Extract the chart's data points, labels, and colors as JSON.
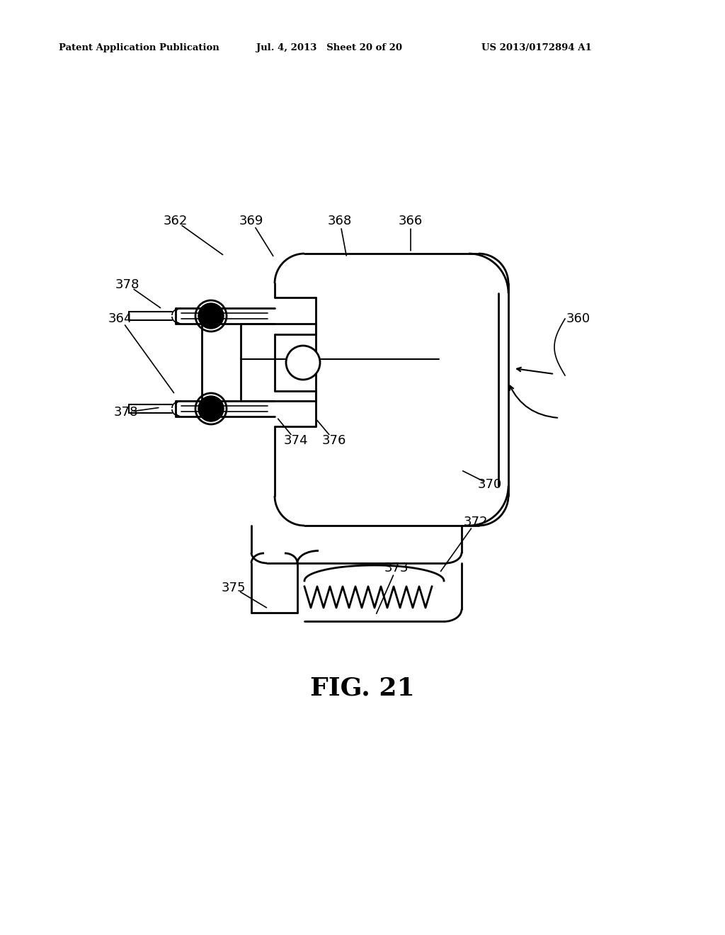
{
  "bg_color": "#ffffff",
  "line_color": "#000000",
  "header_left": "Patent Application Publication",
  "header_mid": "Jul. 4, 2013   Sheet 20 of 20",
  "header_right": "US 2013/0172894 A1",
  "fig_label": "FIG. 21"
}
